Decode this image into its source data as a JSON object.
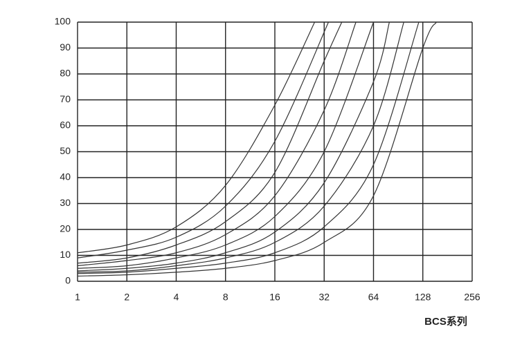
{
  "chart_data": {
    "type": "line",
    "xlabel": "BCS系列",
    "xscale": "log2",
    "grid": true,
    "color": "#333333",
    "xlim": [
      1,
      256
    ],
    "xticks": [
      1,
      2,
      4,
      8,
      16,
      32,
      64,
      128,
      256
    ],
    "ylim": [
      0,
      100
    ],
    "yticks": [
      0,
      10,
      20,
      30,
      40,
      50,
      60,
      70,
      80,
      90,
      100
    ],
    "series": [
      {
        "x": [
          1,
          2,
          4,
          8,
          16,
          28
        ],
        "values": [
          11,
          14,
          21,
          37,
          68,
          100
        ]
      },
      {
        "x": [
          1,
          2,
          4,
          8,
          16,
          34
        ],
        "values": [
          9,
          12,
          17,
          29,
          54,
          100
        ]
      },
      {
        "x": [
          1,
          2,
          4,
          8,
          16,
          32,
          41
        ],
        "values": [
          7,
          9,
          14,
          23,
          42,
          85,
          100
        ]
      },
      {
        "x": [
          1,
          2,
          4,
          8,
          16,
          32,
          50
        ],
        "values": [
          6,
          8,
          11,
          18,
          33,
          66,
          100
        ]
      },
      {
        "x": [
          1,
          2,
          4,
          8,
          16,
          32,
          64
        ],
        "values": [
          5,
          6,
          9,
          14,
          25,
          50,
          100
        ]
      },
      {
        "x": [
          1,
          2,
          4,
          8,
          16,
          32,
          64,
          80
        ],
        "values": [
          4,
          5,
          7,
          11,
          19,
          38,
          77,
          100
        ]
      },
      {
        "x": [
          1,
          2,
          4,
          8,
          16,
          32,
          64,
          98
        ],
        "values": [
          3.5,
          4,
          6,
          9,
          15,
          29,
          60,
          100
        ]
      },
      {
        "x": [
          1,
          2,
          4,
          8,
          16,
          32,
          64,
          121
        ],
        "values": [
          3,
          3.5,
          5,
          7,
          11,
          21,
          45,
          100
        ]
      },
      {
        "x": [
          1,
          2,
          4,
          8,
          16,
          32,
          64,
          128,
          155
        ],
        "values": [
          2,
          2.5,
          3.5,
          5,
          8,
          15,
          33,
          90,
          100
        ]
      }
    ]
  }
}
